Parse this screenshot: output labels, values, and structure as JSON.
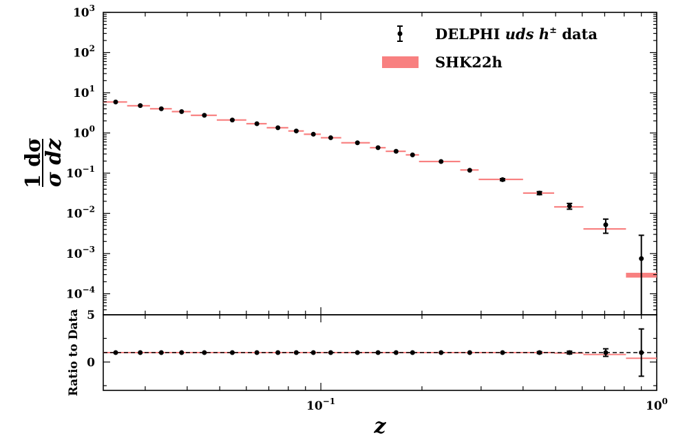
{
  "chart_data": [
    {
      "type": "scatter",
      "panel": "main",
      "x_scale": "log",
      "y_scale": "log",
      "xlim": [
        0.0225,
        1.0
      ],
      "ylim": [
        3e-05,
        1000
      ],
      "ylabel_num": "1 dσ",
      "ylabel_den": "σ dz",
      "y_ticks": [
        {
          "base": "10",
          "exp": "3",
          "value": 1000
        },
        {
          "base": "10",
          "exp": "2",
          "value": 100
        },
        {
          "base": "10",
          "exp": "1",
          "value": 10
        },
        {
          "base": "10",
          "exp": "0",
          "value": 1
        },
        {
          "base": "10",
          "exp": "−1",
          "value": 0.1
        },
        {
          "base": "10",
          "exp": "−2",
          "value": 0.01
        },
        {
          "base": "10",
          "exp": "−3",
          "value": 0.001
        },
        {
          "base": "10",
          "exp": "−4",
          "value": 0.0001
        }
      ],
      "legend": {
        "placement": "top-right",
        "data_label_prefix": "DELPHI ",
        "data_label_italic": "uds h",
        "data_label_sup": "±",
        "data_label_suffix": " data",
        "theory_label": "SHK22h"
      },
      "series": [
        {
          "name": "DELPHI uds h± data",
          "kind": "data",
          "color": "#000000",
          "x": [
            0.0245,
            0.029,
            0.0335,
            0.0385,
            0.045,
            0.0545,
            0.0645,
            0.0745,
            0.0845,
            0.095,
            0.107,
            0.1285,
            0.148,
            0.1675,
            0.1875,
            0.228,
            0.2775,
            0.3475,
            0.4475,
            0.55,
            0.705,
            0.9
          ],
          "y": [
            5.9,
            4.8,
            4.0,
            3.4,
            2.75,
            2.1,
            1.7,
            1.35,
            1.12,
            0.93,
            0.76,
            0.57,
            0.43,
            0.35,
            0.285,
            0.195,
            0.118,
            0.069,
            0.032,
            0.0152,
            0.0052,
            0.00075
          ],
          "yerr": [
            0,
            0,
            0,
            0,
            0,
            0,
            0,
            0,
            0,
            0,
            0,
            0,
            0,
            0,
            0,
            0,
            0,
            0.004,
            0.0028,
            0.0025,
            0.002,
            0.0021
          ]
        },
        {
          "name": "SHK22h",
          "kind": "theory-band",
          "color": "#f88080",
          "bins": [
            [
              0.0225,
              0.0265,
              5.9
            ],
            [
              0.0265,
              0.031,
              4.75
            ],
            [
              0.031,
              0.036,
              4.0
            ],
            [
              0.036,
              0.041,
              3.4
            ],
            [
              0.041,
              0.049,
              2.75
            ],
            [
              0.049,
              0.06,
              2.1
            ],
            [
              0.06,
              0.069,
              1.7
            ],
            [
              0.069,
              0.08,
              1.35
            ],
            [
              0.08,
              0.089,
              1.12
            ],
            [
              0.089,
              0.1,
              0.93
            ],
            [
              0.1,
              0.115,
              0.76
            ],
            [
              0.115,
              0.14,
              0.57
            ],
            [
              0.14,
              0.156,
              0.43
            ],
            [
              0.156,
              0.179,
              0.35
            ],
            [
              0.179,
              0.196,
              0.285
            ],
            [
              0.196,
              0.26,
              0.195
            ],
            [
              0.26,
              0.295,
              0.12
            ],
            [
              0.295,
              0.4,
              0.07
            ],
            [
              0.4,
              0.495,
              0.032
            ],
            [
              0.495,
              0.605,
              0.0145
            ],
            [
              0.605,
              0.81,
              0.0041
            ],
            [
              0.81,
              1.0,
              0.00029
            ]
          ]
        }
      ]
    },
    {
      "type": "scatter",
      "panel": "ratio",
      "x_scale": "log",
      "xlim": [
        0.0225,
        1.0
      ],
      "ylim": [
        -3,
        5
      ],
      "ylabel": "Ratio to Data",
      "xlabel": "z",
      "y_ticks": [
        "5",
        "0"
      ],
      "x_ticks": [
        {
          "base": "10",
          "exp": "−1",
          "value": 0.1
        },
        {
          "base": "10",
          "exp": "0",
          "value": 1
        }
      ],
      "reference_line": 1,
      "series": [
        {
          "name": "data ratio",
          "x": [
            0.0245,
            0.029,
            0.0335,
            0.0385,
            0.045,
            0.0545,
            0.0645,
            0.0745,
            0.0845,
            0.095,
            0.107,
            0.1285,
            0.148,
            0.1675,
            0.1875,
            0.228,
            0.2775,
            0.3475,
            0.4475,
            0.55,
            0.705,
            0.9
          ],
          "y": [
            1,
            1,
            1,
            1,
            1,
            1,
            1,
            1,
            1,
            1,
            1,
            1,
            1,
            1,
            1,
            1,
            1,
            1,
            1,
            1,
            1,
            1
          ],
          "yerr": [
            0,
            0,
            0,
            0,
            0,
            0,
            0,
            0,
            0,
            0,
            0,
            0,
            0,
            0,
            0,
            0,
            0,
            0,
            0.1,
            0.15,
            0.4,
            2.5
          ]
        },
        {
          "name": "SHK22h ratio",
          "bins": [
            [
              0.0225,
              0.0265,
              1.0
            ],
            [
              0.0265,
              0.031,
              1.0
            ],
            [
              0.031,
              0.036,
              1.0
            ],
            [
              0.036,
              0.041,
              1.0
            ],
            [
              0.041,
              0.049,
              1.0
            ],
            [
              0.049,
              0.06,
              1.0
            ],
            [
              0.06,
              0.069,
              1.0
            ],
            [
              0.069,
              0.08,
              1.0
            ],
            [
              0.08,
              0.089,
              1.0
            ],
            [
              0.089,
              0.1,
              1.0
            ],
            [
              0.1,
              0.115,
              1.0
            ],
            [
              0.115,
              0.14,
              1.0
            ],
            [
              0.14,
              0.156,
              1.0
            ],
            [
              0.156,
              0.179,
              1.0
            ],
            [
              0.179,
              0.196,
              1.0
            ],
            [
              0.196,
              0.26,
              1.0
            ],
            [
              0.26,
              0.295,
              1.0
            ],
            [
              0.295,
              0.4,
              1.0
            ],
            [
              0.4,
              0.495,
              1.0
            ],
            [
              0.495,
              0.605,
              0.95
            ],
            [
              0.605,
              0.81,
              0.8
            ],
            [
              0.81,
              1.0,
              0.4
            ]
          ]
        }
      ]
    }
  ]
}
